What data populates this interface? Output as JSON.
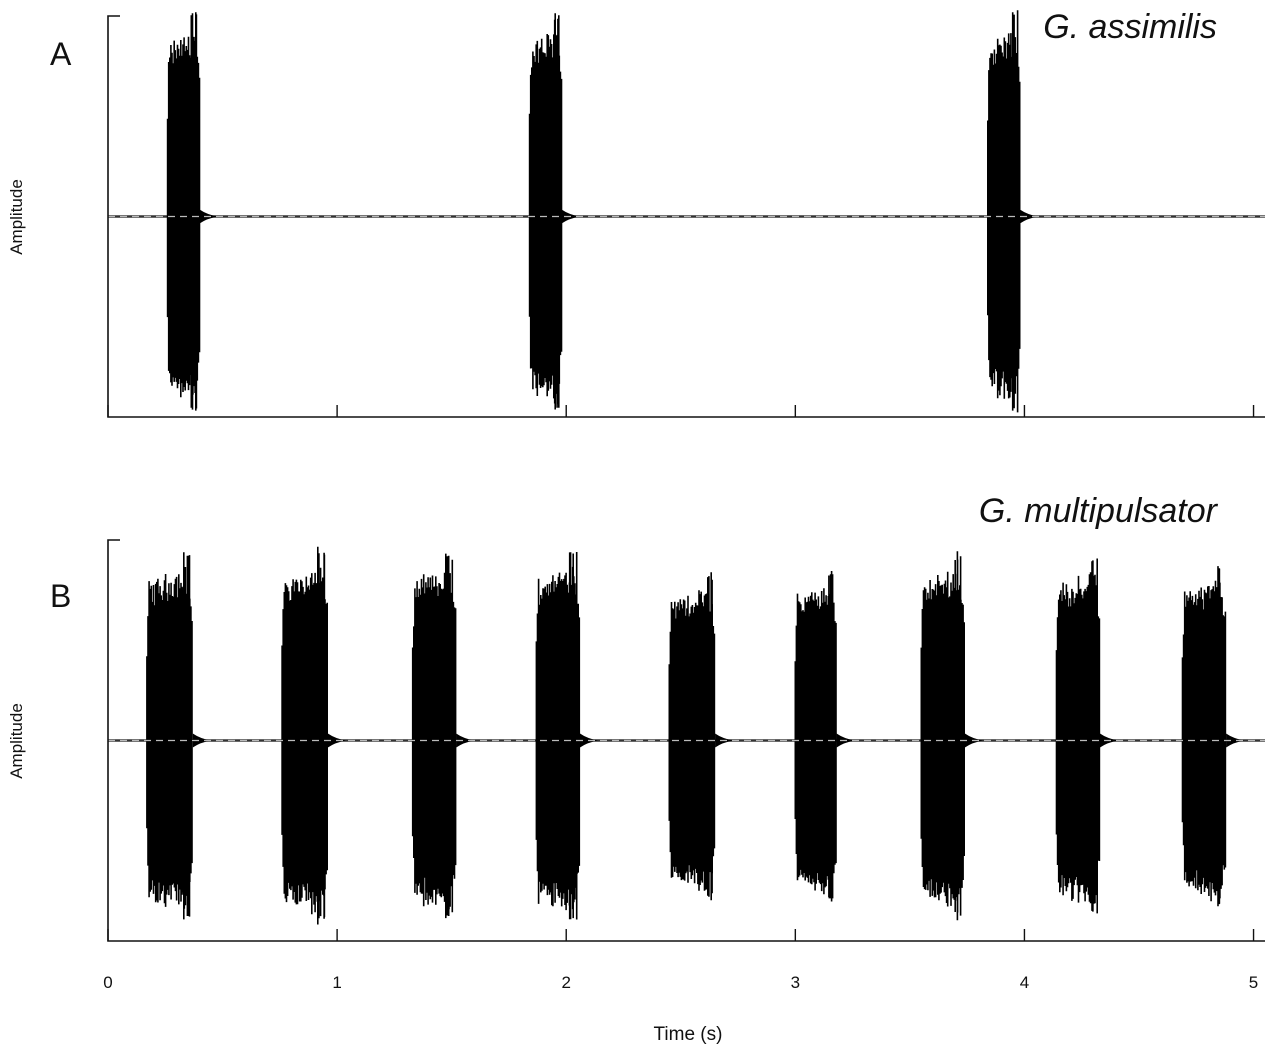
{
  "figure": {
    "x_axis_label": "Time (s)"
  },
  "chart_data": [
    {
      "type": "line",
      "panel_label": "A",
      "title": "G. assimilis",
      "ylabel": "Amplitude",
      "xlabel": "",
      "xlim": [
        0,
        5.05
      ],
      "ylim": [
        -1,
        1
      ],
      "x_ticks": [
        0,
        1,
        2,
        3,
        4,
        5
      ],
      "x_tick_labels_shown": false,
      "grid": false,
      "series": [
        {
          "color": "#000000",
          "bursts": [
            {
              "start": 0.26,
              "end": 0.4,
              "amplitude": 0.98
            },
            {
              "start": 1.84,
              "end": 1.98,
              "amplitude": 0.98
            },
            {
              "start": 3.84,
              "end": 3.98,
              "amplitude": 0.98
            }
          ]
        }
      ]
    },
    {
      "type": "line",
      "panel_label": "B",
      "title": "G. multipulsator",
      "ylabel": "Amplitude",
      "xlabel": "Time (s)",
      "xlim": [
        0,
        5.05
      ],
      "ylim": [
        -1,
        1
      ],
      "x_ticks": [
        0,
        1,
        2,
        3,
        4,
        5
      ],
      "x_tick_labels": [
        "0",
        "1",
        "2",
        "3",
        "4",
        "5"
      ],
      "x_tick_labels_shown": true,
      "grid": false,
      "series": [
        {
          "color": "#000000",
          "bursts": [
            {
              "start": 0.17,
              "end": 0.37,
              "amplitude": 0.9
            },
            {
              "start": 0.76,
              "end": 0.96,
              "amplitude": 0.92
            },
            {
              "start": 1.33,
              "end": 1.52,
              "amplitude": 0.9
            },
            {
              "start": 1.87,
              "end": 2.06,
              "amplitude": 0.92
            },
            {
              "start": 2.45,
              "end": 2.65,
              "amplitude": 0.8
            },
            {
              "start": 3.0,
              "end": 3.18,
              "amplitude": 0.82
            },
            {
              "start": 3.55,
              "end": 3.74,
              "amplitude": 0.9
            },
            {
              "start": 4.14,
              "end": 4.33,
              "amplitude": 0.88
            },
            {
              "start": 4.69,
              "end": 4.88,
              "amplitude": 0.84
            }
          ]
        }
      ]
    }
  ]
}
